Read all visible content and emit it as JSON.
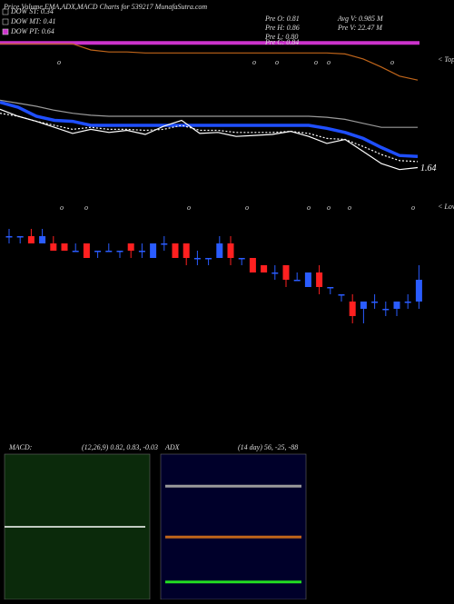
{
  "chart_data": [
    {
      "type": "candlestick",
      "title": "Price,Volume,EMA,ADX,MACD Charts for 539217 MunafaSutra.com",
      "legend": [
        {
          "name": "DOW ST: 0.34",
          "color": "#000000"
        },
        {
          "name": "DOW MT: 0.41",
          "color": "#000000"
        },
        {
          "name": "DOW PT: 0.64",
          "color": "#cc33cc"
        }
      ],
      "info": [
        "Pre O: 0.81",
        "Pre H: 0.86",
        "Pre L: 0.80",
        "Pre C: 0.84",
        "Avg V: 0.985 M",
        "Pre V: 22.47 M"
      ],
      "top_label": "< Tops",
      "low_label": "< Lows",
      "marker": "o",
      "up_color": "#2a5cff",
      "down_color": "#ff2020",
      "ylim": [
        0.75,
        0.92
      ],
      "open": [
        0.9,
        0.9,
        0.9,
        0.89,
        0.89,
        0.89,
        0.88,
        0.89,
        0.88,
        0.88,
        0.88,
        0.89,
        0.88,
        0.87,
        0.89,
        0.89,
        0.89,
        0.87,
        0.87,
        0.87,
        0.89,
        0.87,
        0.87,
        0.86,
        0.85,
        0.86,
        0.84,
        0.83,
        0.85,
        0.83,
        0.82,
        0.81,
        0.8,
        0.81,
        0.8,
        0.8,
        0.81,
        0.81
      ],
      "high": [
        0.91,
        0.9,
        0.91,
        0.91,
        0.9,
        0.89,
        0.89,
        0.89,
        0.88,
        0.89,
        0.88,
        0.89,
        0.89,
        0.89,
        0.9,
        0.89,
        0.89,
        0.88,
        0.87,
        0.9,
        0.9,
        0.87,
        0.87,
        0.86,
        0.86,
        0.86,
        0.85,
        0.85,
        0.86,
        0.83,
        0.82,
        0.82,
        0.81,
        0.82,
        0.81,
        0.81,
        0.82,
        0.86
      ],
      "low": [
        0.89,
        0.89,
        0.89,
        0.89,
        0.88,
        0.88,
        0.88,
        0.87,
        0.87,
        0.88,
        0.87,
        0.87,
        0.87,
        0.87,
        0.88,
        0.87,
        0.86,
        0.86,
        0.86,
        0.87,
        0.86,
        0.86,
        0.85,
        0.85,
        0.84,
        0.83,
        0.84,
        0.83,
        0.82,
        0.82,
        0.81,
        0.78,
        0.78,
        0.8,
        0.79,
        0.79,
        0.8,
        0.8
      ],
      "close": [
        0.9,
        0.9,
        0.89,
        0.9,
        0.88,
        0.88,
        0.88,
        0.87,
        0.88,
        0.88,
        0.88,
        0.88,
        0.88,
        0.89,
        0.89,
        0.87,
        0.87,
        0.87,
        0.87,
        0.89,
        0.87,
        0.87,
        0.85,
        0.85,
        0.85,
        0.84,
        0.84,
        0.85,
        0.83,
        0.83,
        0.82,
        0.79,
        0.81,
        0.81,
        0.8,
        0.81,
        0.81,
        0.84
      ],
      "overlay": {
        "ylim": [
          1.5,
          2.9
        ],
        "band": {
          "value": 2.88,
          "color": "#cc33cc"
        },
        "series": [
          {
            "color": "#c0651a",
            "values": [
              2.87,
              2.87,
              2.87,
              2.87,
              2.87,
              2.81,
              2.79,
              2.79,
              2.78,
              2.78,
              2.78,
              2.78,
              2.78,
              2.78,
              2.78,
              2.78,
              2.78,
              2.78,
              2.78,
              2.77,
              2.72,
              2.64,
              2.55,
              2.51
            ]
          },
          {
            "color": "#9a9a9a",
            "values": [
              2.31,
              2.28,
              2.25,
              2.21,
              2.18,
              2.16,
              2.15,
              2.15,
              2.15,
              2.15,
              2.15,
              2.15,
              2.15,
              2.15,
              2.15,
              2.15,
              2.15,
              2.15,
              2.14,
              2.12,
              2.08,
              2.04,
              2.04,
              2.04
            ]
          },
          {
            "color": "#1f4fff",
            "values": [
              2.29,
              2.24,
              2.15,
              2.11,
              2.1,
              2.06,
              2.06,
              2.06,
              2.06,
              2.06,
              2.06,
              2.06,
              2.06,
              2.06,
              2.06,
              2.06,
              2.06,
              2.06,
              2.03,
              1.99,
              1.93,
              1.84,
              1.76,
              1.75
            ]
          },
          {
            "color": "#ffffff",
            "values": [
              2.22,
              2.15,
              2.1,
              2.04,
              1.98,
              2.02,
              1.99,
              2.01,
              1.97,
              2.05,
              2.11,
              1.98,
              1.99,
              1.95,
              1.96,
              1.97,
              2.0,
              1.95,
              1.88,
              1.92,
              1.8,
              1.68,
              1.62,
              1.64
            ]
          },
          {
            "color": "#ffffff",
            "dashed": true,
            "values": [
              2.18,
              2.15,
              2.1,
              2.06,
              2.02,
              2.04,
              2.02,
              2.02,
              2.01,
              2.02,
              2.06,
              2.01,
              2.01,
              1.99,
              1.99,
              1.99,
              2.0,
              1.98,
              1.93,
              1.92,
              1.85,
              1.77,
              1.71,
              1.7
            ]
          }
        ]
      }
    },
    {
      "type": "macd",
      "label": "MACD:",
      "params": "(12,26,9) 0.82, 0.83, -0.03",
      "background": "#0b2a0b",
      "ylim": [
        0.71,
        0.95
      ],
      "lines": [
        {
          "color": "#ffffff",
          "value": 0.83
        }
      ]
    },
    {
      "type": "adx",
      "label": "ADX",
      "params": "(14 day) 56, -25, -88",
      "background": "#00002a",
      "ylim": [
        0,
        100
      ],
      "lines": [
        {
          "color": "#9a9a9a",
          "value": 78
        },
        {
          "color": "#c0651a",
          "value": 43
        },
        {
          "color": "#22dd22",
          "value": 12
        }
      ]
    }
  ]
}
